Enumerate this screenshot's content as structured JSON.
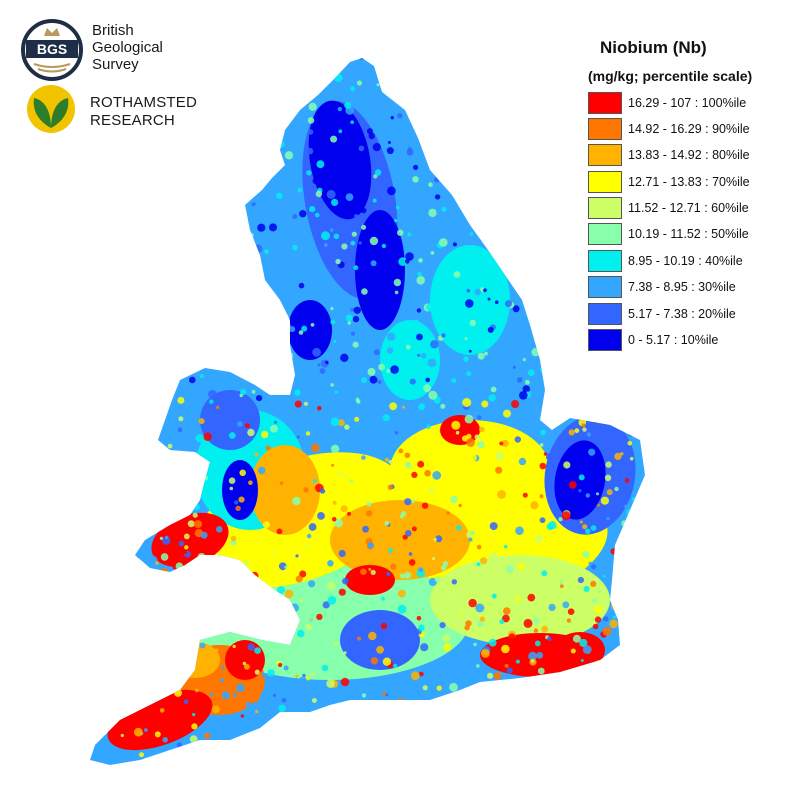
{
  "logos": {
    "bgs": {
      "badge_text": "BGS",
      "name_lines": [
        "British",
        "Geological",
        "Survey"
      ]
    },
    "rothamsted": {
      "name_lines": [
        "ROTHAMSTED",
        "RESEARCH"
      ]
    }
  },
  "legend": {
    "title": "Niobium (Nb)",
    "subtitle": "(mg/kg; percentile scale)",
    "items": [
      {
        "label": "16.29 - 107 : 100%ile",
        "color": "#ff0000"
      },
      {
        "label": "14.92 - 16.29 : 90%ile",
        "color": "#ff7700"
      },
      {
        "label": "13.83 - 14.92 : 80%ile",
        "color": "#ffb300"
      },
      {
        "label": "12.71 - 13.83 : 70%ile",
        "color": "#ffff00"
      },
      {
        "label": "11.52 - 12.71 : 60%ile",
        "color": "#ccff66"
      },
      {
        "label": "10.19 - 11.52 : 50%ile",
        "color": "#88ffaa"
      },
      {
        "label": "8.95 - 10.19 : 40%ile",
        "color": "#00f0f0"
      },
      {
        "label": "7.38 - 8.95 : 30%ile",
        "color": "#33a6ff"
      },
      {
        "label": "5.17 - 7.38 : 20%ile",
        "color": "#3366ff"
      },
      {
        "label": "0 - 5.17 : 10%ile",
        "color": "#0000ee"
      }
    ]
  },
  "colors": {
    "bgs_navy": "#1f2d47",
    "bgs_gold": "#b89a5a",
    "rothamsted_green": "#2e7d2a",
    "rothamsted_yellow": "#f2c400"
  }
}
